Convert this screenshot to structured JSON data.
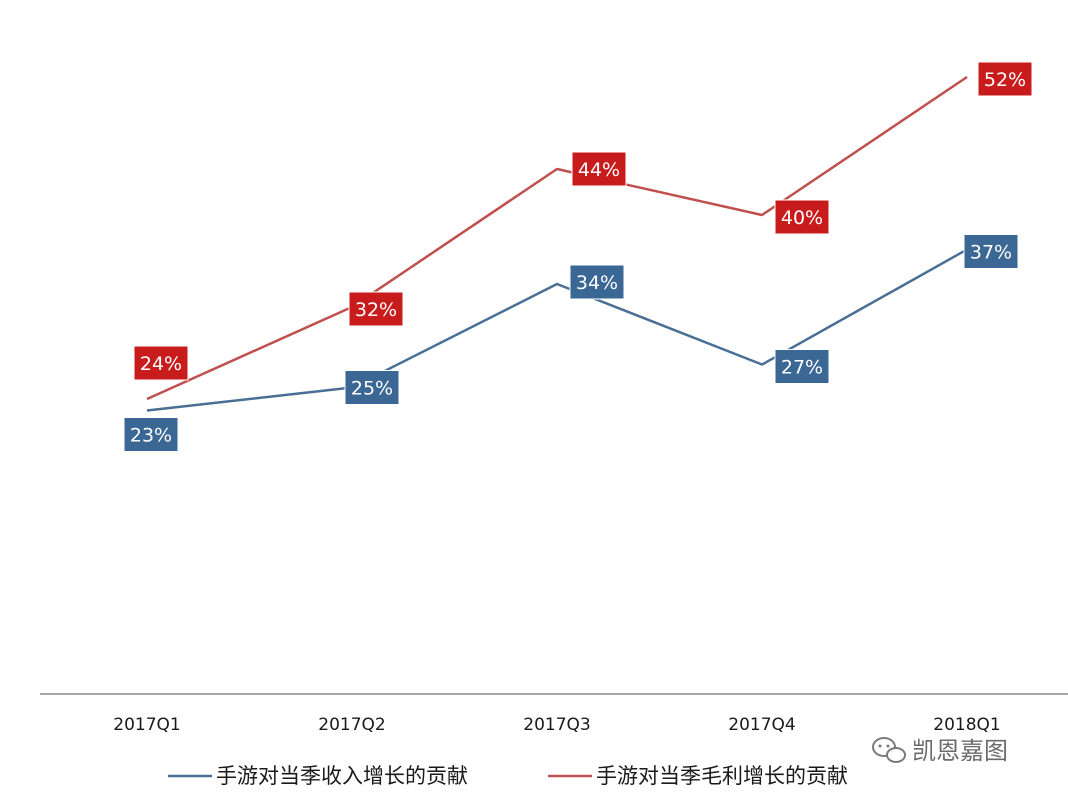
{
  "chart_data": {
    "type": "line",
    "categories": [
      "2017Q1",
      "2017Q2",
      "2017Q3",
      "2017Q4",
      "2018Q1"
    ],
    "ylim": [
      0,
      60
    ],
    "grid": false,
    "legend_position": "bottom",
    "series": [
      {
        "name": "手游对当季收入增长的贡献",
        "values": [
          23,
          25,
          34,
          27,
          37
        ],
        "labels": [
          "23%",
          "25%",
          "34%",
          "27%",
          "37%"
        ],
        "color": "#4a6f94",
        "label_color": "#3a6794"
      },
      {
        "name": "手游对当季毛利增长的贡献",
        "values": [
          24,
          32,
          44,
          40,
          52
        ],
        "labels": [
          "24%",
          "32%",
          "44%",
          "40%",
          "52%"
        ],
        "color": "#c0504d",
        "label_color": "#c81c1c"
      }
    ]
  },
  "watermark": {
    "icon": "wechat-icon",
    "text": "凯恩嘉图"
  }
}
